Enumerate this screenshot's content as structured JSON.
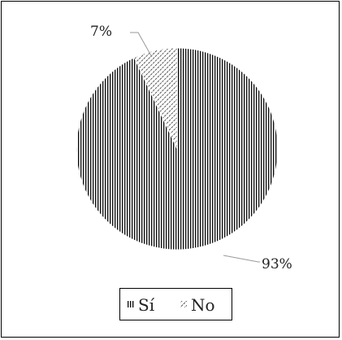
{
  "chart_data": {
    "type": "pie",
    "title": "",
    "slices": [
      {
        "label": "Sí",
        "value": 93,
        "data_label": "93%",
        "pattern": "vertical-lines"
      },
      {
        "label": "No",
        "value": 7,
        "data_label": "7%",
        "pattern": "diagonal-lines"
      }
    ],
    "legend": {
      "position": "bottom",
      "entries": [
        "Sí",
        "No"
      ]
    },
    "start_angle_deg": 0,
    "direction": "clockwise"
  }
}
